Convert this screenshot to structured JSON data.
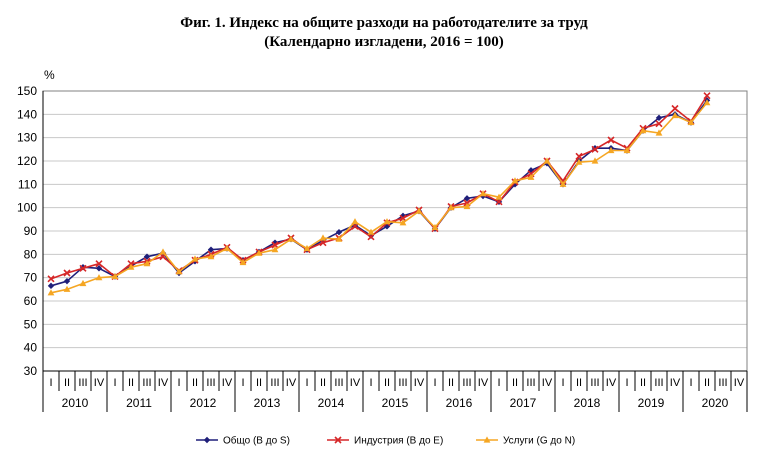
{
  "chart_data": {
    "type": "line",
    "title": "Фиг. 1. Индекс на общите разходи на работодателите за труд",
    "subtitle": "(Календарно изгладени, 2016 = 100)",
    "ylabel": "%",
    "ylim": [
      30,
      150
    ],
    "yticks": [
      30,
      40,
      50,
      60,
      70,
      80,
      90,
      100,
      110,
      120,
      130,
      140,
      150
    ],
    "grid": true,
    "legend_position": "bottom",
    "quarter_labels": [
      "I",
      "II",
      "III",
      "IV"
    ],
    "years": [
      "2010",
      "2011",
      "2012",
      "2013",
      "2014",
      "2015",
      "2016",
      "2017",
      "2018",
      "2019",
      "2020"
    ],
    "series": [
      {
        "name": "Общо (B до S)",
        "color": "#1f1f7a",
        "marker": "diamond",
        "values": [
          66.5,
          68.5,
          74.5,
          74.0,
          70.5,
          75.0,
          79.0,
          80.5,
          72.0,
          77.0,
          82.0,
          82.5,
          77.5,
          81.0,
          85.0,
          86.5,
          82.0,
          86.0,
          89.5,
          92.5,
          88.0,
          92.0,
          96.5,
          98.5,
          91.0,
          100.0,
          104.0,
          105.0,
          102.5,
          110.0,
          116.0,
          119.0,
          110.0,
          120.0,
          125.5,
          125.5,
          124.5,
          133.0,
          138.5,
          140.0,
          136.5,
          146.0
        ]
      },
      {
        "name": "Индустрия (B до E)",
        "color": "#d62728",
        "marker": "x",
        "values": [
          69.5,
          72.0,
          74.0,
          76.0,
          70.5,
          76.0,
          77.0,
          79.0,
          73.0,
          77.5,
          80.0,
          83.0,
          77.5,
          81.0,
          84.0,
          87.0,
          82.0,
          85.0,
          87.0,
          92.0,
          87.5,
          93.5,
          95.5,
          99.0,
          91.0,
          100.5,
          102.0,
          106.0,
          102.5,
          111.0,
          114.5,
          120.0,
          111.5,
          122.0,
          125.0,
          129.0,
          125.5,
          134.0,
          136.0,
          142.5,
          137.0,
          148.0
        ]
      },
      {
        "name": "Услуги (G до N)",
        "color": "#f5a623",
        "marker": "triangle",
        "values": [
          63.5,
          65.0,
          67.5,
          70.0,
          70.5,
          74.5,
          76.0,
          81.0,
          72.5,
          78.0,
          79.0,
          82.5,
          76.5,
          80.5,
          82.0,
          86.5,
          82.5,
          87.0,
          86.5,
          94.0,
          89.5,
          94.0,
          93.5,
          98.5,
          91.5,
          100.0,
          100.5,
          106.0,
          104.5,
          111.5,
          113.0,
          120.0,
          110.0,
          119.5,
          120.0,
          124.5,
          124.5,
          133.0,
          132.0,
          139.5,
          136.5,
          145.0
        ]
      }
    ]
  }
}
